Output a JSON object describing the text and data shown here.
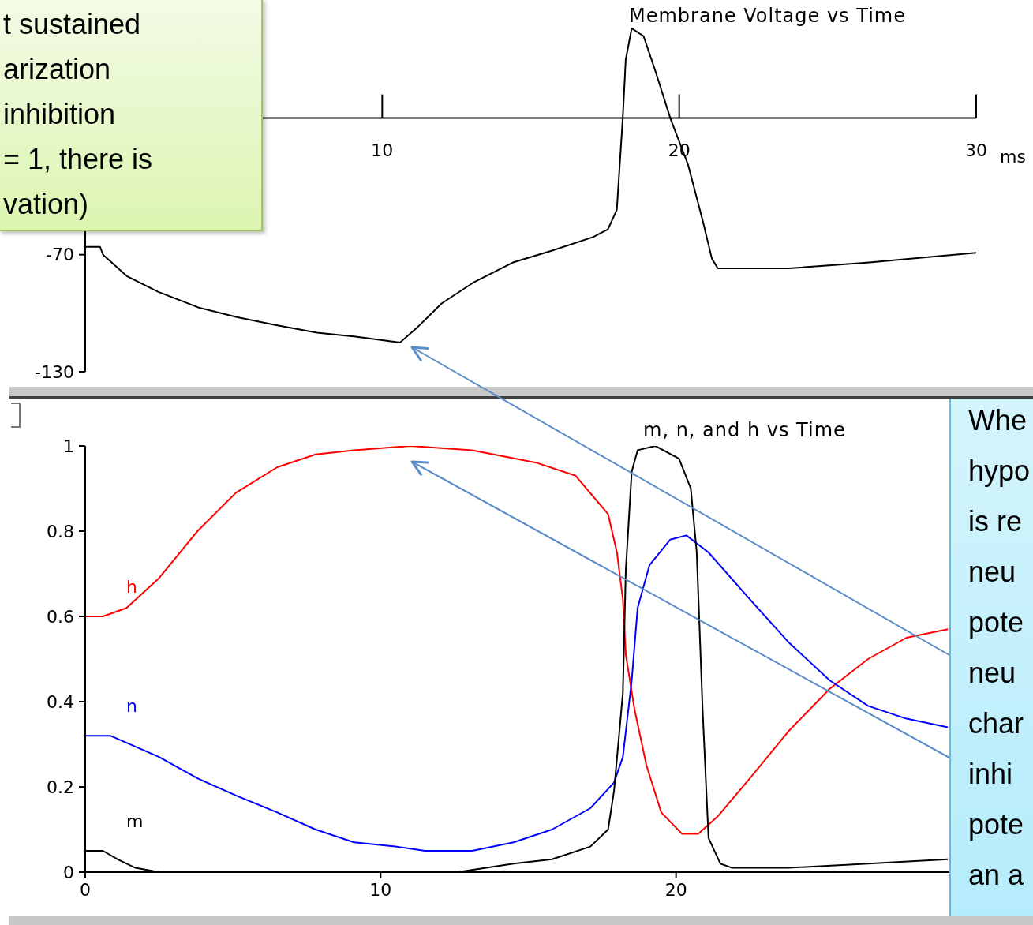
{
  "chart_data": [
    {
      "type": "line",
      "title": "Membrane Voltage vs Time",
      "xlabel": "ms",
      "xlim": [
        0,
        30
      ],
      "xticks": [
        10,
        20,
        30
      ],
      "ylim": [
        -130,
        50
      ],
      "yticks": [
        -70,
        -130
      ],
      "series": [
        {
          "color": "#000000",
          "x": [
            0,
            0.5,
            0.6,
            1.4,
            2.45,
            3.8,
            5.1,
            6.4,
            7.8,
            9.1,
            10.6,
            11.2,
            12.0,
            13.1,
            14.4,
            15.7,
            17.1,
            17.6,
            17.9,
            18.1,
            18.2,
            18.4,
            18.8,
            19.2,
            19.7,
            20.3,
            20.8,
            21.1,
            21.3,
            23.7,
            26.4,
            30
          ],
          "values": [
            -66,
            -66,
            -70,
            -81,
            -89,
            -97,
            -102,
            -106,
            -110,
            -112,
            -115,
            -107,
            -95,
            -84,
            -74,
            -68,
            -61,
            -57,
            -47,
            0,
            30,
            46,
            42,
            24,
            0,
            -24,
            -53,
            -72,
            -77,
            -77,
            -74,
            -69
          ]
        }
      ],
      "annotations": [
        "t sustained\narization\ninhibition\n= 1, there is\nvation)"
      ]
    },
    {
      "type": "line",
      "title": "m, n, and h vs Time",
      "xlim": [
        0,
        30
      ],
      "xticks": [
        0,
        10,
        20
      ],
      "ylim": [
        0,
        1
      ],
      "yticks": [
        0,
        0.2,
        0.4,
        0.6,
        0.8,
        1
      ],
      "series": [
        {
          "name": "h",
          "color": "#ff0000",
          "x": [
            0,
            0.6,
            1.4,
            2.5,
            3.8,
            5.1,
            6.5,
            7.8,
            9.1,
            11.0,
            13.1,
            15.3,
            16.6,
            17.7,
            18.0,
            18.2,
            18.3,
            18.6,
            19.0,
            19.5,
            20.2,
            20.75,
            21.4,
            22.5,
            23.8,
            25.2,
            26.5,
            27.8,
            29.2
          ],
          "values": [
            0.6,
            0.6,
            0.62,
            0.69,
            0.8,
            0.89,
            0.95,
            0.98,
            0.99,
            1.0,
            0.99,
            0.96,
            0.93,
            0.84,
            0.75,
            0.64,
            0.51,
            0.38,
            0.25,
            0.14,
            0.09,
            0.09,
            0.13,
            0.22,
            0.33,
            0.43,
            0.5,
            0.55,
            0.57
          ]
        },
        {
          "name": "n",
          "color": "#0000ff",
          "x": [
            0,
            0.85,
            2.5,
            3.8,
            5.1,
            6.5,
            7.8,
            9.1,
            10.5,
            11.5,
            13.1,
            14.5,
            15.8,
            17.1,
            17.9,
            18.2,
            18.5,
            18.7,
            19.1,
            19.8,
            20.35,
            21.1,
            22.5,
            23.8,
            25.2,
            26.5,
            27.8,
            29.2
          ],
          "values": [
            0.32,
            0.32,
            0.27,
            0.22,
            0.18,
            0.14,
            0.1,
            0.07,
            0.06,
            0.05,
            0.05,
            0.07,
            0.1,
            0.15,
            0.21,
            0.27,
            0.45,
            0.62,
            0.72,
            0.78,
            0.79,
            0.75,
            0.64,
            0.54,
            0.45,
            0.39,
            0.36,
            0.34
          ]
        },
        {
          "name": "m",
          "color": "#000000",
          "x": [
            0,
            0.6,
            1.1,
            1.7,
            2.5,
            12.6,
            14.5,
            15.8,
            17.1,
            17.7,
            17.9,
            18.2,
            18.3,
            18.5,
            18.7,
            19.3,
            20.1,
            20.5,
            20.7,
            20.9,
            21.1,
            21.5,
            21.9,
            23.8,
            26.5,
            29.2
          ],
          "values": [
            0.05,
            0.05,
            0.03,
            0.01,
            0,
            0,
            0.02,
            0.03,
            0.06,
            0.1,
            0.19,
            0.42,
            0.71,
            0.94,
            0.99,
            1.0,
            0.97,
            0.9,
            0.75,
            0.38,
            0.08,
            0.02,
            0.01,
            0.01,
            0.02,
            0.03
          ]
        }
      ],
      "annotations": [
        "Whe\nhypo\nis re\nneu\npote\nneu\nchar\ninhi\npote\nan a"
      ]
    }
  ]
}
